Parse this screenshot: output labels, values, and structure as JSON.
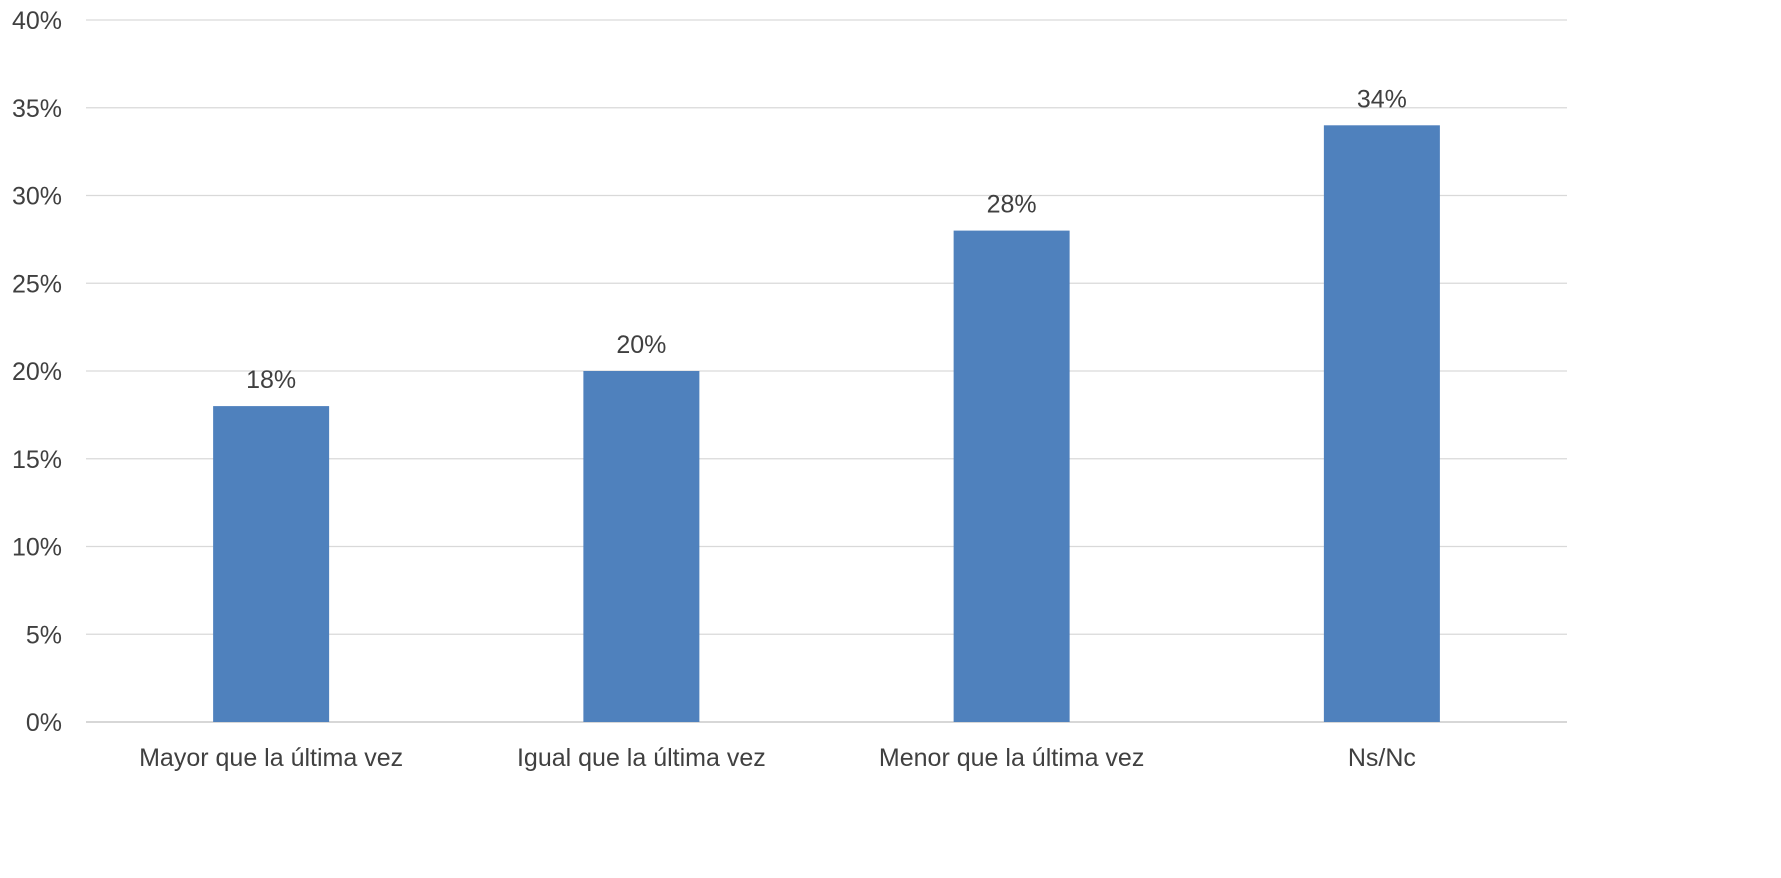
{
  "chart_data": {
    "type": "bar",
    "categories": [
      "Mayor que la última vez",
      "Igual que la última vez",
      "Menor que la última vez",
      "Ns/Nc"
    ],
    "values": [
      18,
      20,
      28,
      34
    ],
    "data_labels": [
      "18%",
      "20%",
      "28%",
      "34%"
    ],
    "title": "",
    "xlabel": "",
    "ylabel": "",
    "ylim": [
      0,
      40
    ],
    "y_ticks": [
      0,
      5,
      10,
      15,
      20,
      25,
      30,
      35,
      40
    ],
    "y_tick_labels": [
      "0%",
      "5%",
      "10%",
      "15%",
      "20%",
      "25%",
      "30%",
      "35%",
      "40%"
    ],
    "grid": true,
    "legend": "none",
    "bar_color": "#4f81bd"
  }
}
